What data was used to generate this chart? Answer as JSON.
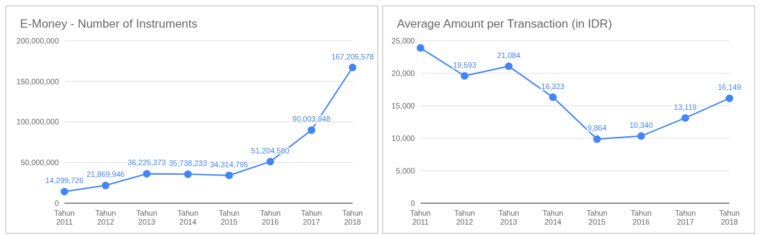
{
  "chart_data": [
    {
      "type": "line",
      "title": "E-Money - Number of Instruments",
      "categories": [
        "Tahun 2011",
        "Tahun 2012",
        "Tahun 2013",
        "Tahun 2014",
        "Tahun 2015",
        "Tahun 2016",
        "Tahun 2017",
        "Tahun 2018"
      ],
      "series": [
        {
          "color": "#4285f4",
          "values": [
            14299726,
            21869946,
            36225373,
            35738233,
            34314795,
            51204580,
            90003848,
            167205578
          ],
          "value_labels": [
            "14,299,726",
            "21,869,946",
            "36,225,373",
            "35,738,233",
            "34,314,795",
            "51,204,580",
            "90,003,848",
            "167,205,578"
          ]
        }
      ],
      "ylim": [
        0,
        200000000
      ],
      "yticks": [
        {
          "value": 0,
          "label": "0"
        },
        {
          "value": 50000000,
          "label": "50,000,000"
        },
        {
          "value": 100000000,
          "label": "100,000,000"
        },
        {
          "value": 150000000,
          "label": "150,000,000"
        },
        {
          "value": 200000000,
          "label": "200,000,000"
        }
      ],
      "grid": "y",
      "marker": "circle",
      "line_style": "solid",
      "legend": false
    },
    {
      "type": "line",
      "title": "Average Amount per Transaction (in IDR)",
      "categories": [
        "Tahun 2011",
        "Tahun 2012",
        "Tahun 2013",
        "Tahun 2014",
        "Tahun 2015",
        "Tahun 2016",
        "Tahun 2017",
        "Tahun 2018"
      ],
      "series": [
        {
          "color": "#4285f4",
          "values": [
            23900,
            19593,
            21084,
            16323,
            9864,
            10340,
            13119,
            16149
          ],
          "value_labels": [
            null,
            "19,593",
            "21,084",
            "16,323",
            "9,864",
            "10,340",
            "13,119",
            "16,149"
          ]
        }
      ],
      "ylim": [
        0,
        25000
      ],
      "yticks": [
        {
          "value": 0,
          "label": "0"
        },
        {
          "value": 5000,
          "label": "5,000"
        },
        {
          "value": 10000,
          "label": "10,000"
        },
        {
          "value": 15000,
          "label": "15,000"
        },
        {
          "value": 20000,
          "label": "20,000"
        },
        {
          "value": 25000,
          "label": "25,000"
        }
      ],
      "grid": "y",
      "marker": "circle",
      "line_style": "solid",
      "legend": false
    }
  ]
}
